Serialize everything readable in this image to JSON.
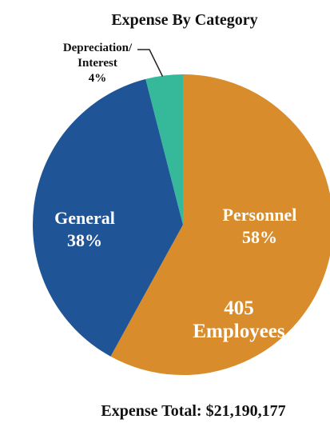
{
  "chart_data": {
    "type": "pie",
    "title": "Expense By Category",
    "slices": [
      {
        "label": "Personnel",
        "value": 58,
        "value_label": "58%",
        "color": "#D98C2B"
      },
      {
        "label": "General",
        "value": 38,
        "value_label": "38%",
        "color": "#1F5496"
      },
      {
        "label": "Depreciation/\nInterest",
        "value": 4,
        "value_label": "4%",
        "color": "#35B99A"
      }
    ],
    "annotation": {
      "line1": "405",
      "line2": "Employees"
    },
    "footer": "Expense Total: $21,190,177",
    "start_angle_deg": 0,
    "direction": "clockwise"
  }
}
